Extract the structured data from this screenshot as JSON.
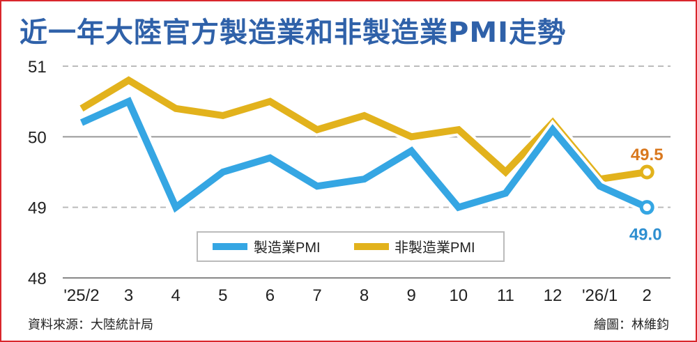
{
  "title": "近一年大陸官方製造業和非製造業PMI走勢",
  "source": "資料來源：大陸統計局",
  "credit": "繪圖：林維鈞",
  "chart_data": {
    "type": "line",
    "title": "近一年大陸官方製造業和非製造業PMI走勢",
    "categories": [
      "'25/2",
      "3",
      "4",
      "5",
      "6",
      "7",
      "8",
      "9",
      "10",
      "11",
      "12",
      "'26/1",
      "2"
    ],
    "series": [
      {
        "name": "製造業PMI",
        "color": "#35a6e3",
        "values": [
          50.2,
          50.5,
          49.0,
          49.5,
          49.7,
          49.3,
          49.4,
          49.8,
          49.0,
          49.2,
          50.1,
          49.3,
          49.0
        ]
      },
      {
        "name": "非製造業PMI",
        "color": "#e2b21c",
        "values": [
          50.4,
          50.8,
          50.4,
          50.3,
          50.5,
          50.1,
          50.3,
          50.0,
          50.1,
          49.5,
          50.2,
          49.4,
          49.5
        ]
      }
    ],
    "end_labels": [
      {
        "text": "49.0",
        "color": "#2e8fd0"
      },
      {
        "text": "49.5",
        "color": "#d9781e"
      }
    ],
    "yticks": [
      48,
      49,
      50,
      51
    ],
    "ylim": [
      48,
      51
    ],
    "grid": true,
    "legend": "bottom-center"
  }
}
